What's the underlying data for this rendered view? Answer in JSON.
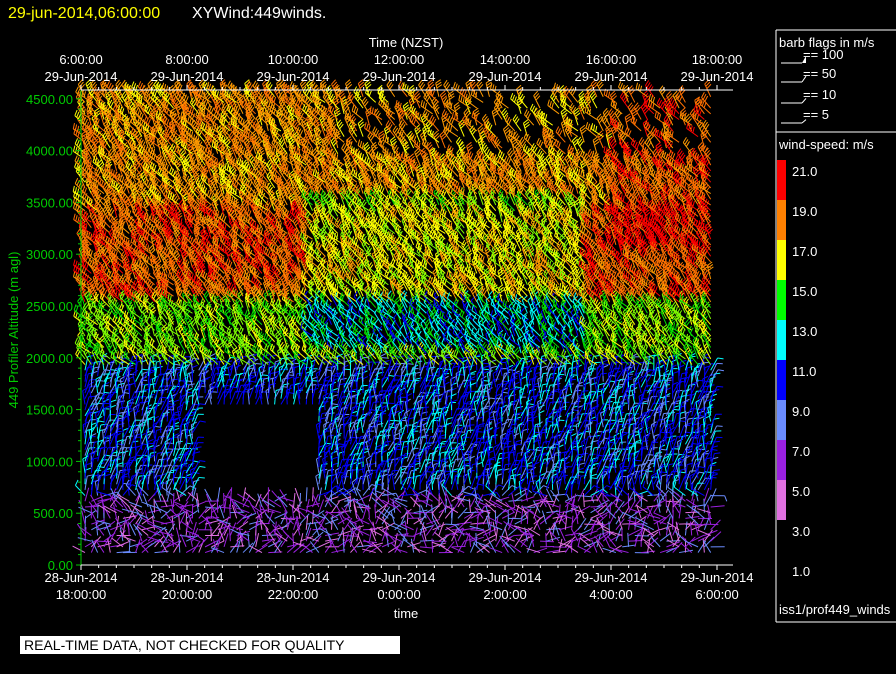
{
  "header": {
    "datetime": "29-jun-2014,06:00:00",
    "title": "XYWind:449winds."
  },
  "footer": {
    "qc_notice": "REAL-TIME DATA, NOT CHECKED FOR QUALITY",
    "source": "iss1/prof449_winds"
  },
  "colors": {
    "header_datetime": "#ffff00",
    "axis_left": "#00cc00",
    "axis_text": "#ffffff"
  },
  "legend": {
    "barb_title": "barb flags in m/s",
    "barb_entries": [
      "== 100",
      "== 50",
      "== 10",
      "== 5"
    ],
    "speed_title": "wind-speed: m/s",
    "speed_labels": [
      "21.0",
      "19.0",
      "17.0",
      "15.0",
      "13.0",
      "11.0",
      "9.0",
      "7.0",
      "5.0",
      "3.0",
      "1.0"
    ],
    "speed_colors": [
      "#ff0000",
      "#ff8000",
      "#ffff00",
      "#00ff00",
      "#00ffff",
      "#0000ff",
      "#6a8cff",
      "#9a20e0",
      "#e070e0"
    ]
  },
  "chart_data": {
    "type": "scatter",
    "title": "",
    "top_axis_label": "Time (NZST)",
    "top_ticks": [
      {
        "time": "6:00:00",
        "date": "29-Jun-2014"
      },
      {
        "time": "8:00:00",
        "date": "29-Jun-2014"
      },
      {
        "time": "10:00:00",
        "date": "29-Jun-2014"
      },
      {
        "time": "12:00:00",
        "date": "29-Jun-2014"
      },
      {
        "time": "14:00:00",
        "date": "29-Jun-2014"
      },
      {
        "time": "16:00:00",
        "date": "29-Jun-2014"
      },
      {
        "time": "18:00:00",
        "date": "29-Jun-2014"
      }
    ],
    "bottom_ticks": [
      {
        "date": "28-Jun-2014",
        "time": "18:00:00"
      },
      {
        "date": "28-Jun-2014",
        "time": "20:00:00"
      },
      {
        "date": "28-Jun-2014",
        "time": "22:00:00"
      },
      {
        "date": "29-Jun-2014",
        "time": "0:00:00"
      },
      {
        "date": "29-Jun-2014",
        "time": "2:00:00"
      },
      {
        "date": "29-Jun-2014",
        "time": "4:00:00"
      },
      {
        "date": "29-Jun-2014",
        "time": "6:00:00"
      }
    ],
    "xlabel": "time",
    "ylabel": "449 Profiler Altitude (m agl)",
    "ylim": [
      0,
      4600
    ],
    "xlim_hours_utc": [
      18,
      30.3
    ],
    "yticks": [
      "0.00",
      "500.00",
      "1000.00",
      "1500.00",
      "2000.00",
      "2500.00",
      "3000.00",
      "3500.00",
      "4000.00",
      "4500.00"
    ],
    "grid": false,
    "speed_bands": [
      {
        "alt_from": 0,
        "alt_to": 650,
        "speed": 3.0
      },
      {
        "alt_from": 650,
        "alt_to": 1900,
        "speed": 7.0
      },
      {
        "alt_from": 1900,
        "alt_to": 2500,
        "speed": 13.0
      },
      {
        "alt_from": 2500,
        "alt_to": 3400,
        "speed": 19.0
      },
      {
        "alt_from": 3400,
        "alt_to": 4600,
        "speed": 17.0
      }
    ]
  }
}
